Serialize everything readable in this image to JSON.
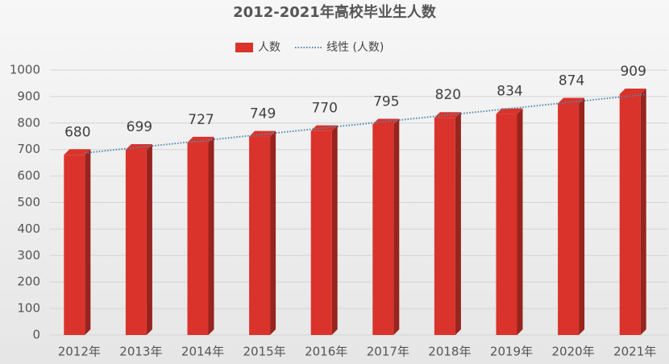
{
  "chart_data": {
    "type": "bar",
    "title": "2012-2021年高校毕业生人数",
    "categories": [
      "2012年",
      "2013年",
      "2014年",
      "2015年",
      "2016年",
      "2017年",
      "2018年",
      "2019年",
      "2020年",
      "2021年"
    ],
    "series": [
      {
        "name": "人数",
        "color": "#d9332b",
        "values": [
          680,
          699,
          727,
          749,
          770,
          795,
          820,
          834,
          874,
          909
        ]
      }
    ],
    "trendline": {
      "name": "线性 (人数)",
      "color": "#4f87ad"
    },
    "ylim": [
      0,
      1000
    ],
    "yticks": [
      0,
      100,
      200,
      300,
      400,
      500,
      600,
      700,
      800,
      900,
      1000
    ],
    "grid": true,
    "legend": "top"
  }
}
